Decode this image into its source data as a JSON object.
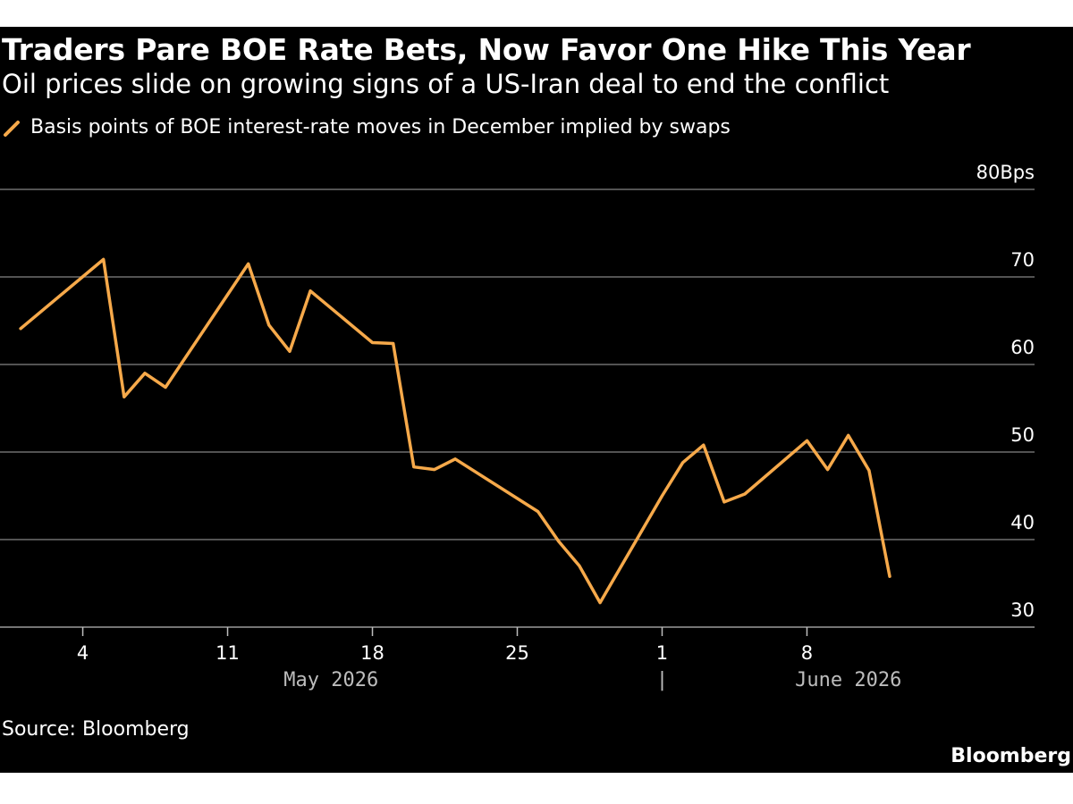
{
  "title": "Traders Pare BOE Rate Bets, Now Favor One Hike This Year",
  "subtitle": "Oil prices slide on growing signs of a US-Iran deal to end the conflict",
  "source": "Source: Bloomberg",
  "brand": "Bloomberg",
  "chart_data": {
    "type": "line",
    "series": [
      {
        "name": "Basis points of BOE interest-rate moves in December implied by swaps",
        "color": "#f6a94a",
        "points": [
          {
            "x": "2026-05-01",
            "y": 64.1
          },
          {
            "x": "2026-05-05",
            "y": 72.0
          },
          {
            "x": "2026-05-06",
            "y": 56.3
          },
          {
            "x": "2026-05-07",
            "y": 59.0
          },
          {
            "x": "2026-05-08",
            "y": 57.4
          },
          {
            "x": "2026-05-12",
            "y": 71.5
          },
          {
            "x": "2026-05-13",
            "y": 64.5
          },
          {
            "x": "2026-05-14",
            "y": 61.5
          },
          {
            "x": "2026-05-15",
            "y": 68.4
          },
          {
            "x": "2026-05-18",
            "y": 62.5
          },
          {
            "x": "2026-05-19",
            "y": 62.4
          },
          {
            "x": "2026-05-20",
            "y": 48.3
          },
          {
            "x": "2026-05-21",
            "y": 48.0
          },
          {
            "x": "2026-05-22",
            "y": 49.2
          },
          {
            "x": "2026-05-26",
            "y": 43.2
          },
          {
            "x": "2026-05-27",
            "y": 39.8
          },
          {
            "x": "2026-05-28",
            "y": 37.0
          },
          {
            "x": "2026-05-29",
            "y": 32.8
          },
          {
            "x": "2026-06-01",
            "y": 45.0
          },
          {
            "x": "2026-06-02",
            "y": 48.8
          },
          {
            "x": "2026-06-03",
            "y": 50.8
          },
          {
            "x": "2026-06-04",
            "y": 44.3
          },
          {
            "x": "2026-06-05",
            "y": 45.2
          },
          {
            "x": "2026-06-08",
            "y": 51.3
          },
          {
            "x": "2026-06-09",
            "y": 48.0
          },
          {
            "x": "2026-06-10",
            "y": 51.9
          },
          {
            "x": "2026-06-11",
            "y": 47.9
          },
          {
            "x": "2026-06-12",
            "y": 35.8
          }
        ]
      }
    ],
    "x_range": [
      "2026-04-30",
      "2026-06-19"
    ],
    "ylim": [
      30,
      80
    ],
    "y_ticks": [
      {
        "value": 30,
        "label": "30"
      },
      {
        "value": 40,
        "label": "40"
      },
      {
        "value": 50,
        "label": "50"
      },
      {
        "value": 60,
        "label": "60"
      },
      {
        "value": 70,
        "label": "70"
      },
      {
        "value": 80,
        "label": "80Bps"
      }
    ],
    "x_ticks": [
      {
        "date": "2026-05-04",
        "label": "4"
      },
      {
        "date": "2026-05-11",
        "label": "11"
      },
      {
        "date": "2026-05-18",
        "label": "18"
      },
      {
        "date": "2026-05-25",
        "label": "25"
      },
      {
        "date": "2026-06-01",
        "label": "1"
      },
      {
        "date": "2026-06-08",
        "label": "8"
      }
    ],
    "month_labels": [
      {
        "label": "May 2026",
        "date": "2026-05-16"
      },
      {
        "label": "June 2026",
        "date": "2026-06-10"
      }
    ],
    "month_separator": {
      "label": "|",
      "date": "2026-06-01"
    },
    "grid": true,
    "legend_position": "top-left"
  }
}
